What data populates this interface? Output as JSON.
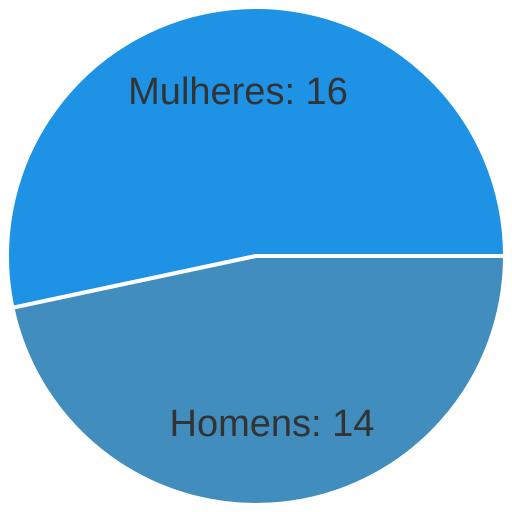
{
  "chart_data": {
    "type": "pie",
    "title": "",
    "slices": [
      {
        "label": "Mulheres: 16",
        "category": "Mulheres",
        "value": 16,
        "color": "#1e92e4"
      },
      {
        "label": "Homens: 14",
        "category": "Homens",
        "value": 14,
        "color": "#418dbd"
      }
    ],
    "start_direction": "right",
    "direction": "counterclockwise",
    "separator_color": "#ffffff",
    "label_color": "#333333",
    "legend": "none"
  }
}
